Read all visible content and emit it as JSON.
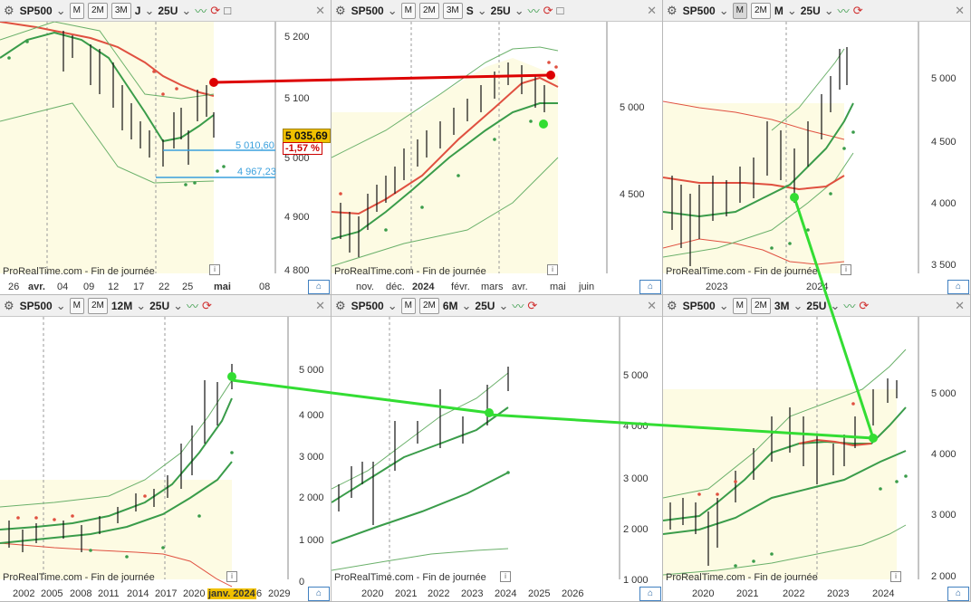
{
  "colors": {
    "band_fill": "#fdfbe3",
    "moving_average_red": "#e05040",
    "moving_average_green": "#3a9c4a",
    "band_line": "#6ab06a",
    "annotation_red": "#dd0000",
    "annotation_green": "#33dd33",
    "level_line": "#3aa0dd",
    "price_tag_bg": "#f0c000"
  },
  "panels": [
    {
      "symbol": "SP500",
      "period_buttons": [
        "M",
        "2M",
        "3M"
      ],
      "timeframe": "J",
      "bars_count": "25U",
      "footer": "ProRealTime.com - Fin de journée",
      "price_labels": [
        "5 200",
        "5 100",
        "5 000",
        "4 900",
        "4 800"
      ],
      "time_labels": [
        "26",
        "avr.",
        "04",
        "09",
        "12",
        "17",
        "22",
        "25",
        "mai",
        "08"
      ],
      "current_price": "5 035,69",
      "change_pct": "-1,57 %",
      "levels": [
        "5 010,60",
        "4 967,23"
      ]
    },
    {
      "symbol": "SP500",
      "period_buttons": [
        "M",
        "2M",
        "3M"
      ],
      "timeframe": "S",
      "bars_count": "25U",
      "footer": "ProRealTime.com - Fin de journée",
      "price_labels": [
        "5 000",
        "4 500"
      ],
      "time_labels": [
        "nov.",
        "déc.",
        "2024",
        "févr.",
        "mars",
        "avr.",
        "mai",
        "juin"
      ]
    },
    {
      "symbol": "SP500",
      "period_buttons": [
        "M",
        "2M"
      ],
      "timeframe": "M",
      "bars_count": "25U",
      "footer": "ProRealTime.com - Fin de journée",
      "price_labels": [
        "5 000",
        "4 500",
        "4 000",
        "3 500"
      ],
      "time_labels": [
        "2023",
        "2024"
      ]
    },
    {
      "symbol": "SP500",
      "period_buttons": [
        "M",
        "2M"
      ],
      "timeframe": "12M",
      "bars_count": "25U",
      "footer": "ProRealTime.com - Fin de journée",
      "price_labels": [
        "5 000",
        "4 000",
        "3 000",
        "2 000",
        "1 000",
        "0"
      ],
      "time_labels": [
        "2002",
        "2005",
        "2008",
        "2011",
        "2014",
        "2017",
        "2020",
        "janv. 2024",
        "6",
        "2029"
      ]
    },
    {
      "symbol": "SP500",
      "period_buttons": [
        "M",
        "2M"
      ],
      "timeframe": "6M",
      "bars_count": "25U",
      "footer": "ProRealTime.com - Fin de journée",
      "price_labels": [
        "5 000",
        "4 000",
        "3 000",
        "2 000",
        "1 000"
      ],
      "time_labels": [
        "2020",
        "2021",
        "2022",
        "2023",
        "2024",
        "2025",
        "2026"
      ]
    },
    {
      "symbol": "SP500",
      "period_buttons": [
        "M",
        "2M"
      ],
      "timeframe": "3M",
      "bars_count": "25U",
      "footer": "ProRealTime.com - Fin de journée",
      "price_labels": [
        "5 000",
        "4 000",
        "3 000",
        "2 000"
      ],
      "time_labels": [
        "2020",
        "2021",
        "2022",
        "2023",
        "2024"
      ]
    }
  ]
}
